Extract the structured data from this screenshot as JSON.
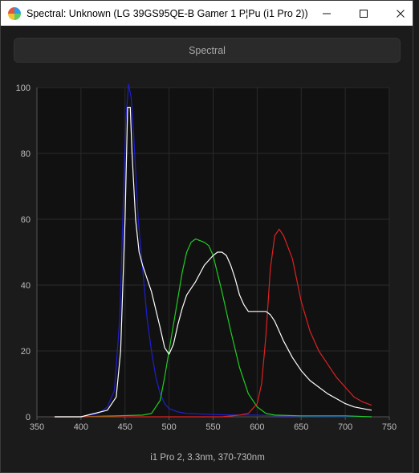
{
  "window": {
    "title": "Spectral: Unknown (LG 39GS95QE-B Gamer 1 P¦Pu (i1 Pro 2))",
    "icon": "app-logo-icon",
    "controls": [
      "minimize-icon",
      "maximize-icon",
      "close-icon"
    ]
  },
  "toolbar": {
    "spectral_label": "Spectral"
  },
  "chart_data": {
    "type": "line",
    "xlabel": "i1 Pro 2, 3.3nm, 370-730nm",
    "ylabel": "",
    "xlim": [
      350,
      750
    ],
    "ylim": [
      0,
      100
    ],
    "xticks": [
      350,
      400,
      450,
      500,
      550,
      600,
      650,
      700,
      750
    ],
    "yticks": [
      0,
      20,
      40,
      60,
      80,
      100
    ],
    "grid": true,
    "background": "#111111",
    "series": [
      {
        "color": "#1f1fd0",
        "x": [
          370,
          400,
          420,
          430,
          438,
          444,
          448,
          451,
          454,
          457,
          460,
          465,
          470,
          475,
          480,
          485,
          490,
          495,
          500,
          510,
          520,
          540,
          560,
          580,
          600,
          620,
          650,
          700,
          730
        ],
        "y": [
          0,
          0,
          1,
          3,
          8,
          30,
          65,
          90,
          101,
          97,
          85,
          60,
          45,
          30,
          20,
          12,
          7,
          4,
          2.5,
          1.5,
          1,
          0.8,
          0.6,
          0.5,
          0.5,
          0.3,
          0.2,
          0.1,
          0
        ]
      },
      {
        "color": "#22cc22",
        "x": [
          370,
          400,
          440,
          470,
          480,
          490,
          495,
          500,
          505,
          510,
          515,
          520,
          525,
          530,
          535,
          540,
          545,
          550,
          560,
          570,
          580,
          590,
          600,
          610,
          620,
          650,
          700,
          730
        ],
        "y": [
          0,
          0,
          0.3,
          0.5,
          1,
          5,
          12,
          20,
          28,
          36,
          44,
          50,
          53,
          54,
          53.5,
          53,
          52,
          49,
          38,
          26,
          15,
          7,
          3,
          1,
          0.5,
          0.3,
          0.3,
          0
        ]
      },
      {
        "color": "#dd2222",
        "x": [
          370,
          500,
          560,
          580,
          590,
          600,
          605,
          610,
          615,
          620,
          625,
          630,
          640,
          650,
          660,
          670,
          680,
          690,
          700,
          710,
          720,
          730
        ],
        "y": [
          0,
          0,
          0,
          0.5,
          1,
          4,
          10,
          25,
          45,
          55,
          57,
          55,
          48,
          35,
          26,
          20,
          16,
          12,
          9,
          6,
          4.5,
          3.5
        ]
      },
      {
        "color": "#ffffff",
        "x": [
          370,
          400,
          430,
          440,
          445,
          450,
          453,
          456,
          458,
          462,
          466,
          470,
          480,
          490,
          495,
          500,
          505,
          510,
          515,
          520,
          525,
          530,
          540,
          550,
          555,
          560,
          565,
          570,
          575,
          580,
          585,
          590,
          600,
          610,
          615,
          620,
          625,
          630,
          640,
          650,
          660,
          670,
          680,
          690,
          700,
          710,
          720,
          730
        ],
        "y": [
          0,
          0,
          2,
          6,
          20,
          60,
          94,
          94,
          80,
          60,
          50,
          46,
          38,
          27,
          21,
          19,
          22,
          28,
          33,
          37,
          39,
          41,
          46,
          49,
          50,
          50,
          49,
          46,
          42,
          37,
          34,
          32,
          32,
          32,
          31,
          29,
          26,
          23,
          18,
          14,
          11,
          9,
          7,
          5.5,
          4,
          3,
          2.5,
          2
        ]
      }
    ]
  }
}
